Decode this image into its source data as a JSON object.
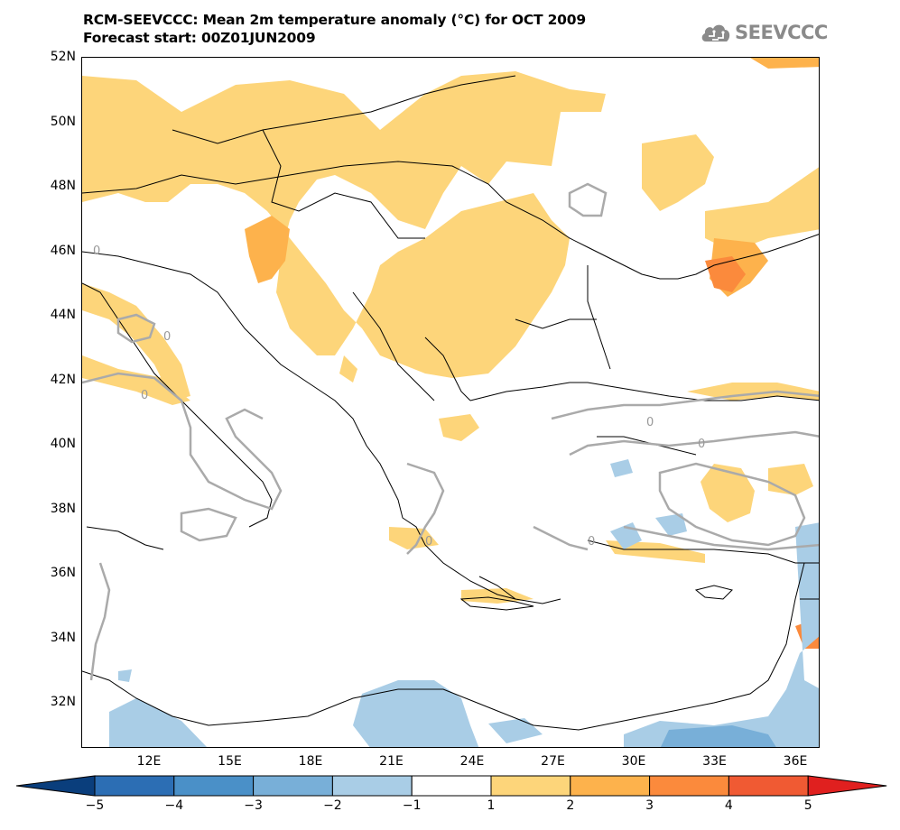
{
  "title": {
    "line1": "RCM-SEEVCCC: Mean 2m temperature anomaly (°C) for OCT 2009",
    "line2": "Forecast start: 00Z01JUN2009"
  },
  "logo": {
    "text": "SEEVCCC",
    "icon": "cloud-icon"
  },
  "axes": {
    "lat_labels": [
      "52N",
      "50N",
      "48N",
      "46N",
      "44N",
      "42N",
      "40N",
      "38N",
      "36N",
      "34N",
      "32N"
    ],
    "lon_labels": [
      "12E",
      "15E",
      "18E",
      "21E",
      "24E",
      "27E",
      "30E",
      "33E",
      "36E"
    ]
  },
  "colorbar": {
    "labels": [
      "−5",
      "−4",
      "−3",
      "−2",
      "−1",
      "1",
      "2",
      "3",
      "4",
      "5"
    ],
    "colors": [
      "#0a3e7c",
      "#2c6eb4",
      "#4a90c8",
      "#78afd8",
      "#a9cde6",
      "#ffffff",
      "#fdd57a",
      "#fdb24c",
      "#fb8a3c",
      "#f05a33",
      "#e0201f"
    ]
  },
  "contour_label": "0"
}
